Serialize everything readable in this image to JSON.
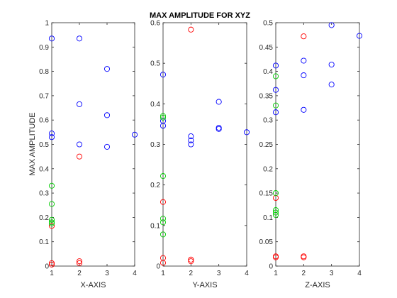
{
  "figure": {
    "title": "MAX AMPLITUDE FOR XYZ",
    "ylabel": "MAX AMPLITUDE"
  },
  "chart_data": [
    {
      "type": "scatter",
      "xlabel": "X-AXIS",
      "xlim": [
        1,
        4
      ],
      "ylim": [
        0,
        1
      ],
      "xticks": [
        "1",
        "2",
        "3",
        "4"
      ],
      "yticks": [
        "0",
        "0.1",
        "0.2",
        "0.3",
        "0.4",
        "0.5",
        "0.6",
        "0.7",
        "0.8",
        "0.9",
        "1"
      ],
      "series": [
        {
          "color": "#0000ff",
          "points": [
            [
              1,
              0.935
            ],
            [
              1,
              0.545
            ],
            [
              1,
              0.53
            ],
            [
              2,
              0.935
            ],
            [
              2,
              0.665
            ],
            [
              2,
              0.5
            ],
            [
              3,
              0.81
            ],
            [
              3,
              0.62
            ],
            [
              3,
              0.49
            ],
            [
              4,
              0.54
            ]
          ]
        },
        {
          "color": "#ff0000",
          "points": [
            [
              1,
              0.165
            ],
            [
              1,
              0.012
            ],
            [
              1,
              0.006
            ],
            [
              2,
              0.45
            ],
            [
              2,
              0.02
            ],
            [
              2,
              0.012
            ]
          ]
        },
        {
          "color": "#00cc00",
          "points": [
            [
              1,
              0.33
            ],
            [
              1,
              0.255
            ],
            [
              1,
              0.19
            ],
            [
              1,
              0.18
            ],
            [
              1,
              0.175
            ]
          ]
        }
      ]
    },
    {
      "type": "scatter",
      "xlabel": "Y-AXIS",
      "xlim": [
        1,
        4
      ],
      "ylim": [
        0,
        0.6
      ],
      "xticks": [
        "1",
        "2",
        "3",
        "4"
      ],
      "yticks": [
        "0",
        "0.1",
        "0.2",
        "0.3",
        "0.4",
        "0.5",
        "0.6"
      ],
      "series": [
        {
          "color": "#0000ff",
          "points": [
            [
              1,
              0.472
            ],
            [
              1,
              0.358
            ],
            [
              1,
              0.346
            ],
            [
              2,
              0.32
            ],
            [
              2,
              0.31
            ],
            [
              2,
              0.3
            ],
            [
              3,
              0.405
            ],
            [
              3,
              0.341
            ],
            [
              3,
              0.338
            ],
            [
              4,
              0.33
            ]
          ]
        },
        {
          "color": "#ff0000",
          "points": [
            [
              1,
              0.158
            ],
            [
              1,
              0.02
            ],
            [
              1,
              0.008
            ],
            [
              2,
              0.583
            ],
            [
              2,
              0.016
            ],
            [
              2,
              0.012
            ]
          ]
        },
        {
          "color": "#00cc00",
          "points": [
            [
              1,
              0.37
            ],
            [
              1,
              0.366
            ],
            [
              1,
              0.222
            ],
            [
              1,
              0.117
            ],
            [
              1,
              0.108
            ],
            [
              1,
              0.078
            ]
          ]
        }
      ]
    },
    {
      "type": "scatter",
      "xlabel": "Z-AXIS",
      "xlim": [
        1,
        4
      ],
      "ylim": [
        0,
        0.5
      ],
      "xticks": [
        "1",
        "2",
        "3",
        "4"
      ],
      "yticks": [
        "0",
        "0.05",
        "0.1",
        "0.15",
        "0.2",
        "0.25",
        "0.3",
        "0.35",
        "0.4",
        "0.45",
        "0.5"
      ],
      "series": [
        {
          "color": "#0000ff",
          "points": [
            [
              1,
              0.412
            ],
            [
              1,
              0.362
            ],
            [
              1,
              0.316
            ],
            [
              2,
              0.422
            ],
            [
              2,
              0.392
            ],
            [
              2,
              0.321
            ],
            [
              3,
              0.495
            ],
            [
              3,
              0.414
            ],
            [
              3,
              0.373
            ],
            [
              4,
              0.473
            ]
          ]
        },
        {
          "color": "#ff0000",
          "points": [
            [
              1,
              0.14
            ],
            [
              1,
              0.02
            ],
            [
              1,
              0.018
            ],
            [
              2,
              0.472
            ],
            [
              2,
              0.02
            ],
            [
              2,
              0.018
            ]
          ]
        },
        {
          "color": "#00cc00",
          "points": [
            [
              1,
              0.39
            ],
            [
              1,
              0.33
            ],
            [
              1,
              0.15
            ],
            [
              1,
              0.115
            ],
            [
              1,
              0.11
            ],
            [
              1,
              0.105
            ]
          ]
        }
      ]
    }
  ]
}
